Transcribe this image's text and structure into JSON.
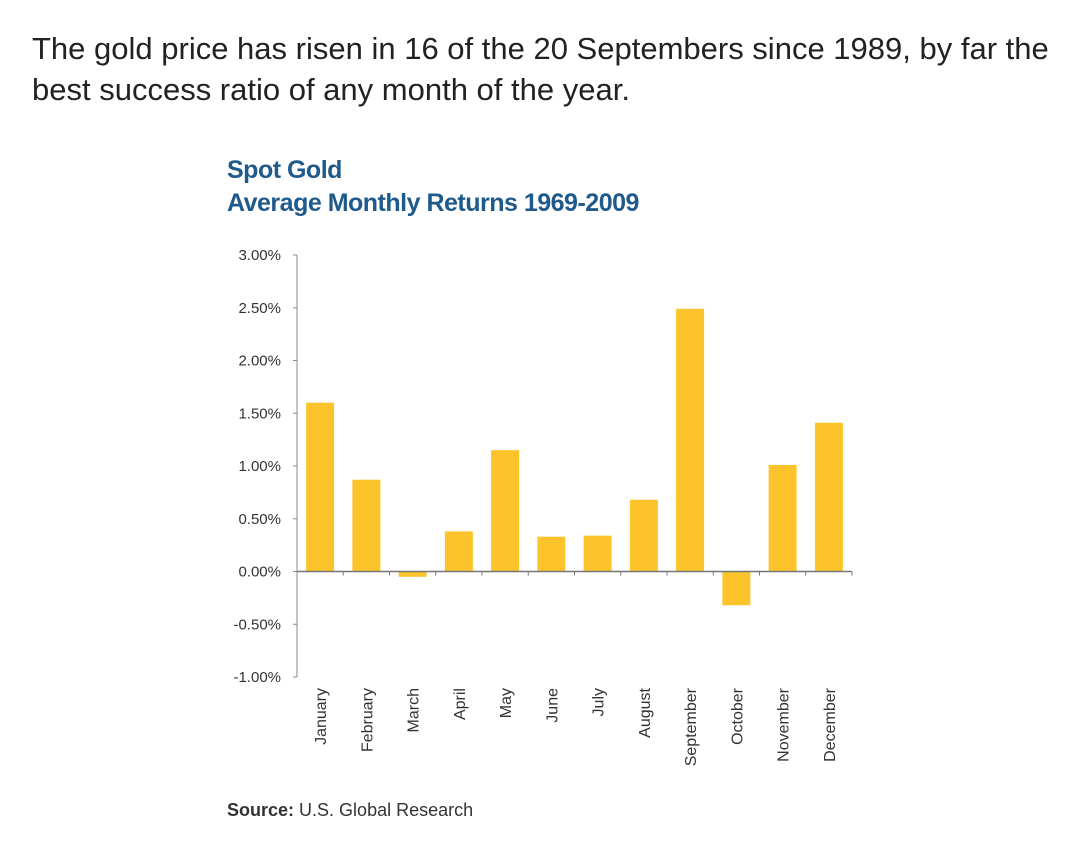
{
  "article": {
    "caption": "The gold price has risen in 16 of the 20 Septembers since 1989, by far the best success ratio of any month of the year."
  },
  "source": {
    "label": "Source:",
    "text": "U.S. Global Research"
  },
  "colors": {
    "bar": "#fcc42a",
    "title": "#1f5a8c",
    "axis": "#888888"
  },
  "chart_data": {
    "type": "bar",
    "title": "Spot Gold",
    "subtitle": "Average Monthly Returns 1969-2009",
    "categories": [
      "January",
      "February",
      "March",
      "April",
      "May",
      "June",
      "July",
      "August",
      "September",
      "October",
      "November",
      "December"
    ],
    "values": [
      1.6,
      0.87,
      -0.05,
      0.38,
      1.15,
      0.33,
      0.34,
      0.68,
      2.49,
      -0.32,
      1.01,
      1.41
    ],
    "ylim": [
      -1.0,
      3.0
    ],
    "yticks": [
      3.0,
      2.5,
      2.0,
      1.5,
      1.0,
      0.5,
      0.0,
      -0.5,
      -1.0
    ],
    "ytick_labels": [
      "3.00%",
      "2.50%",
      "2.00%",
      "1.50%",
      "1.00%",
      "0.50%",
      "0.00%",
      "-0.50%",
      "-1.00%"
    ],
    "xlabel": "",
    "ylabel": "",
    "grid": false,
    "legend": "none"
  }
}
